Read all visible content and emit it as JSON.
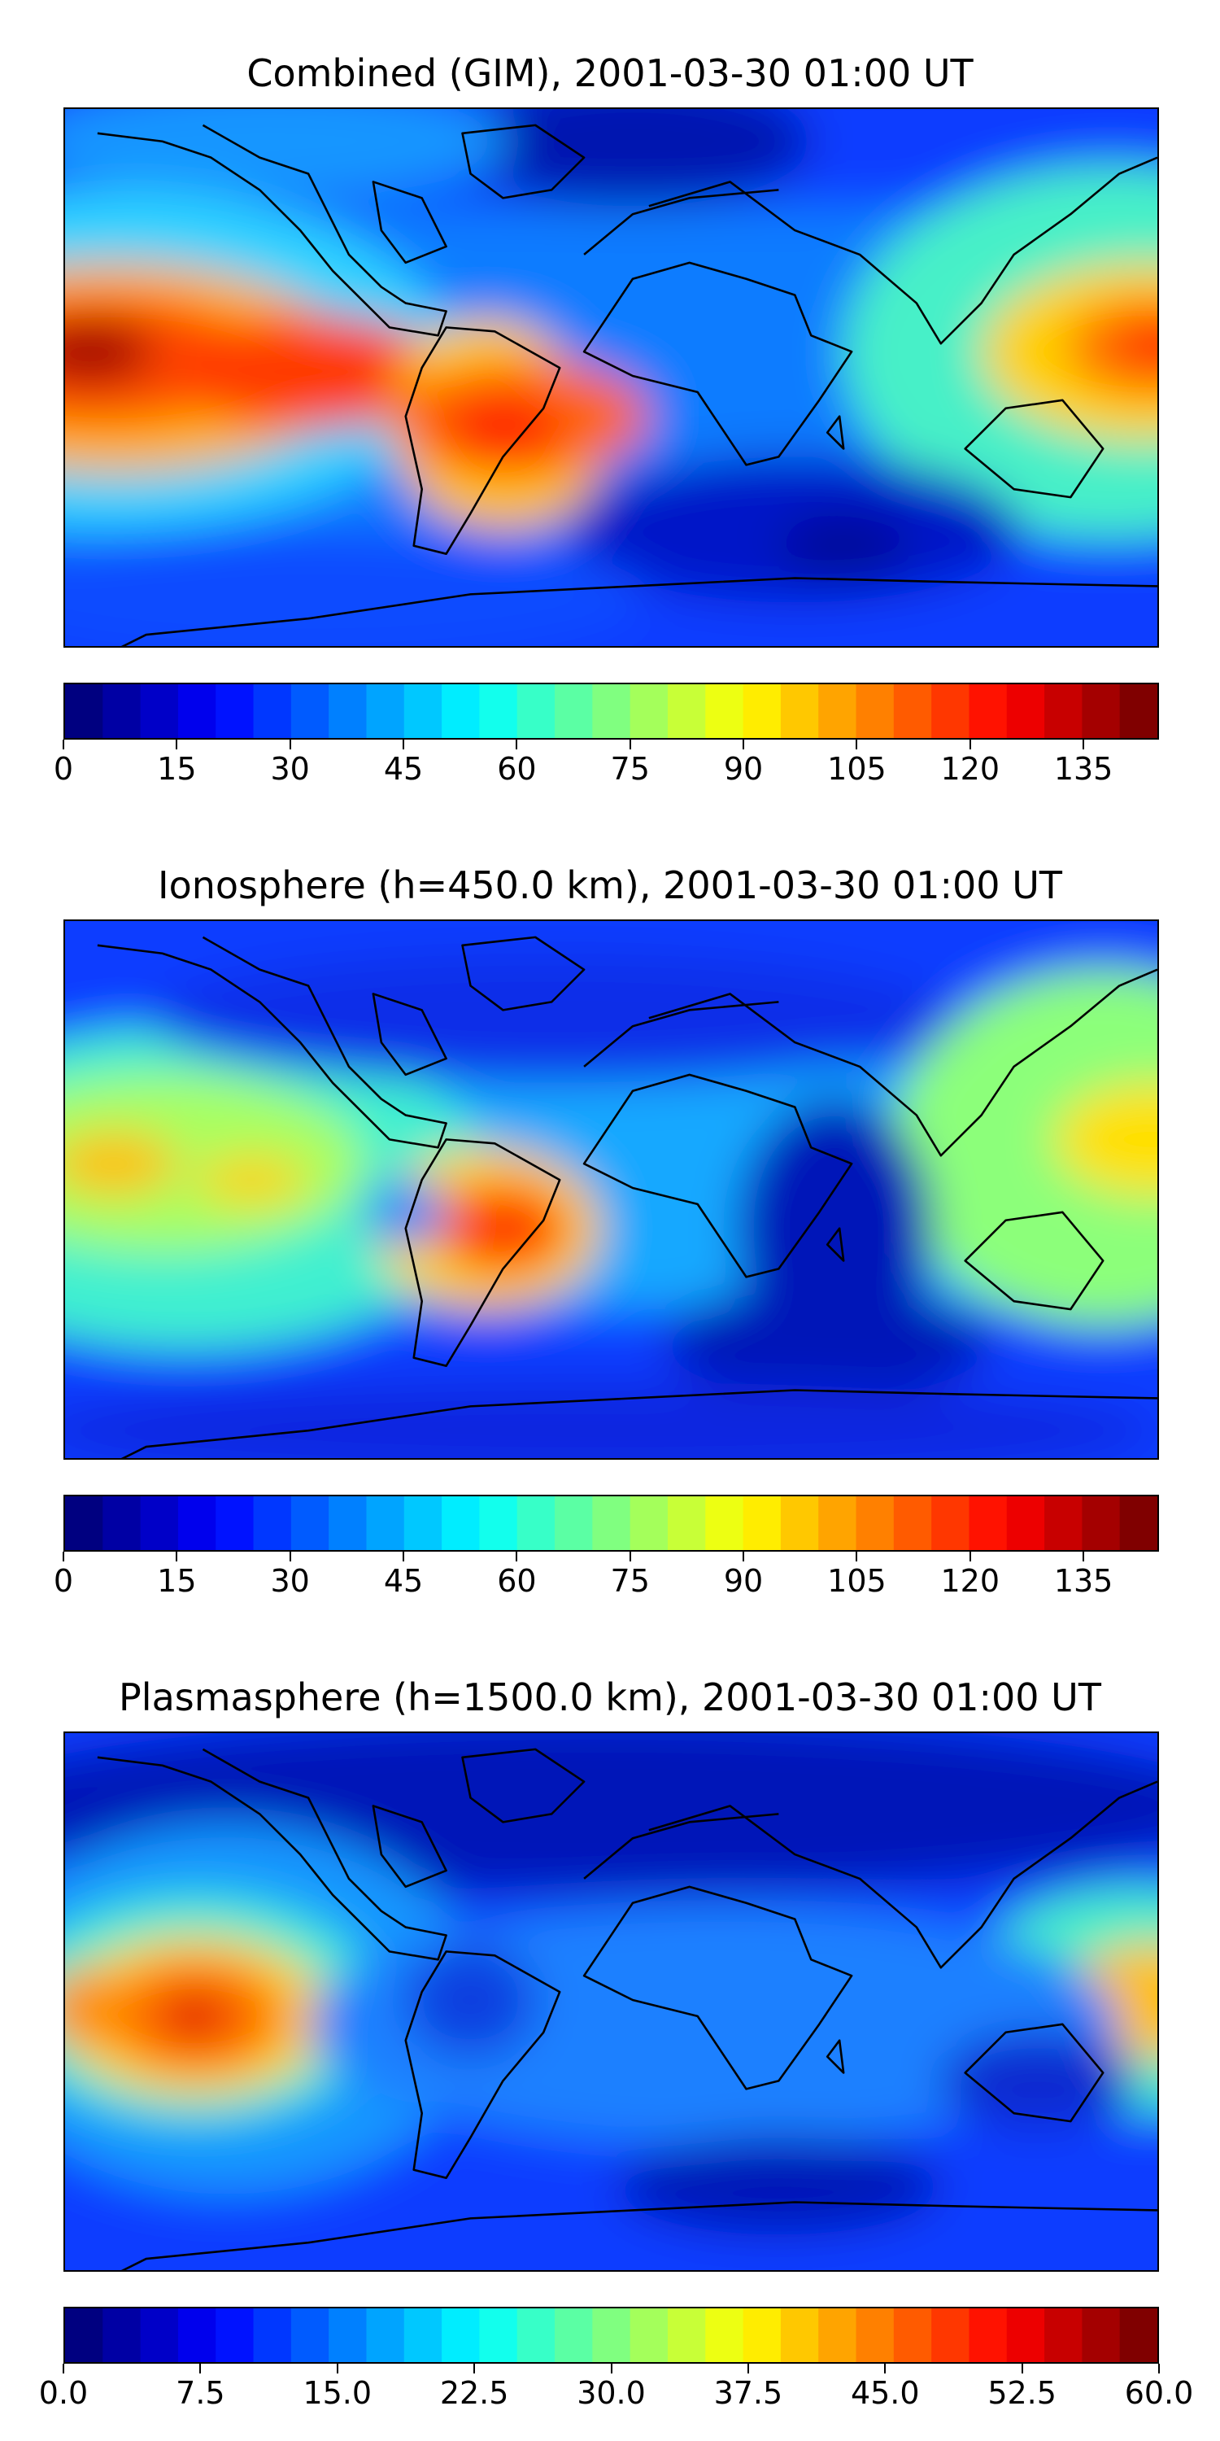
{
  "panels": [
    {
      "title": "Combined (GIM), 2001-03-30 01:00 UT",
      "colorbar_ticks": [
        "0",
        "15",
        "30",
        "45",
        "60",
        "75",
        "90",
        "105",
        "120",
        "135"
      ],
      "vmin": 0,
      "vmax": 145
    },
    {
      "title": "Ionosphere  (h=450.0 km), 2001-03-30 01:00 UT",
      "colorbar_ticks": [
        "0",
        "15",
        "30",
        "45",
        "60",
        "75",
        "90",
        "105",
        "120",
        "135"
      ],
      "vmin": 0,
      "vmax": 145
    },
    {
      "title": "Plasmasphere (h=1500.0 km), 2001-03-30 01:00 UT",
      "colorbar_ticks": [
        "0.0",
        "7.5",
        "15.0",
        "22.5",
        "30.0",
        "37.5",
        "45.0",
        "52.5",
        "60.0"
      ],
      "vmin": 0,
      "vmax": 60
    }
  ],
  "colormap": "jet",
  "colorbar_levels": 29
}
